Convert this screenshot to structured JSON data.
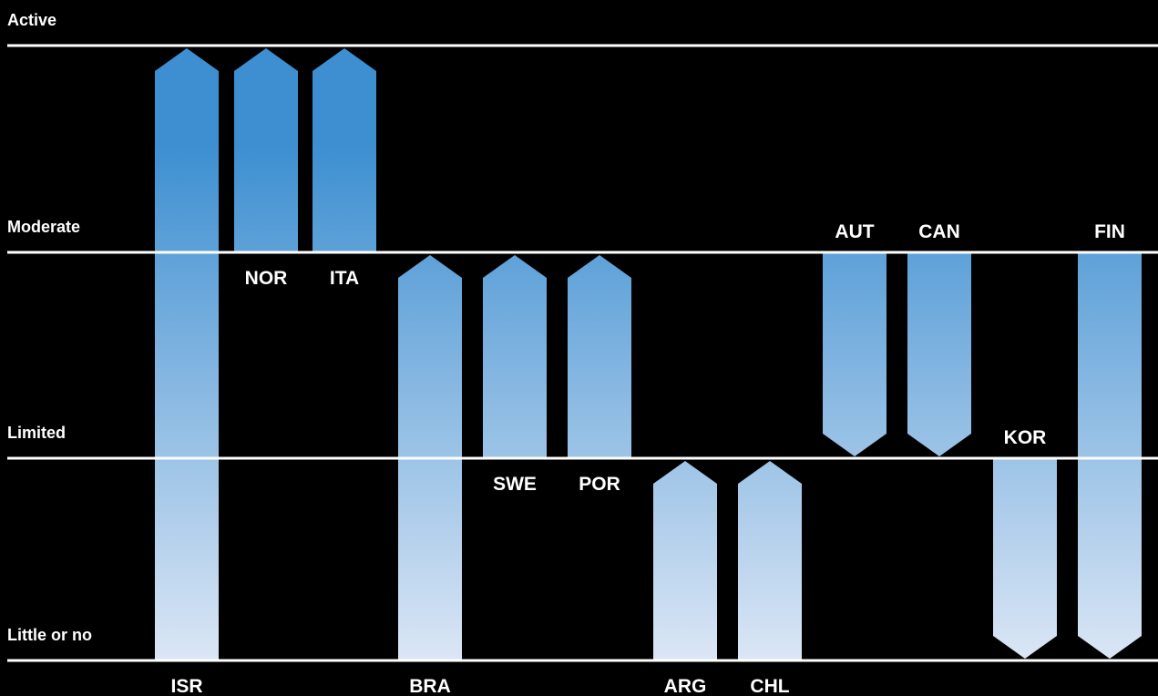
{
  "chart_data": {
    "type": "range-arrows",
    "levels": [
      "Little or no",
      "Limited",
      "Moderate",
      "Active"
    ],
    "series": [
      {
        "country": "ISR",
        "from": "Little or no",
        "to": "Active"
      },
      {
        "country": "NOR",
        "from": "Moderate",
        "to": "Active"
      },
      {
        "country": "ITA",
        "from": "Moderate",
        "to": "Active"
      },
      {
        "country": "BRA",
        "from": "Little or no",
        "to": "Moderate"
      },
      {
        "country": "SWE",
        "from": "Limited",
        "to": "Moderate"
      },
      {
        "country": "POR",
        "from": "Limited",
        "to": "Moderate"
      },
      {
        "country": "ARG",
        "from": "Little or no",
        "to": "Limited"
      },
      {
        "country": "CHL",
        "from": "Little or no",
        "to": "Limited"
      },
      {
        "country": "AUT",
        "from": "Moderate",
        "to": "Limited"
      },
      {
        "country": "CAN",
        "from": "Moderate",
        "to": "Limited"
      },
      {
        "country": "KOR",
        "from": "Limited",
        "to": "Little or no"
      },
      {
        "country": "FIN",
        "from": "Moderate",
        "to": "Little or no"
      }
    ],
    "colors": {
      "background": "#000000",
      "line": "#ffffff",
      "text": "#ffffff",
      "gradient_top": "#3d8fd1",
      "gradient_bottom": "#dbe6f5"
    }
  }
}
